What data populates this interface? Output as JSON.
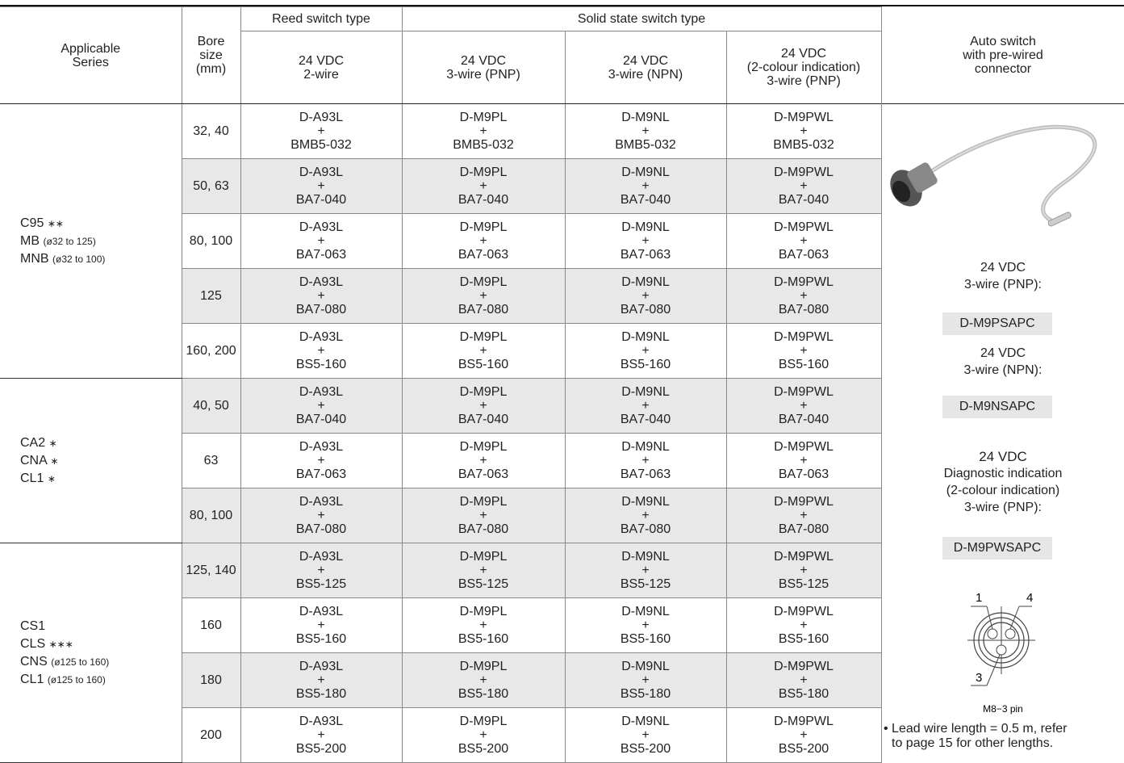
{
  "table": {
    "header": {
      "series": [
        "Applicable",
        "Series"
      ],
      "bore": [
        "Bore",
        "size",
        "(mm)"
      ],
      "reed": "Reed switch type",
      "solid": "Solid state switch type",
      "columns": [
        [
          "24 VDC",
          "2-wire"
        ],
        [
          "24 VDC",
          "3-wire (PNP)"
        ],
        [
          "24 VDC",
          "3-wire (NPN)"
        ],
        [
          "24 VDC",
          "(2-colour indication)",
          "3-wire (PNP)"
        ]
      ],
      "auto": [
        "Auto switch",
        "with pre-wired",
        "connector"
      ]
    },
    "groups": [
      {
        "series": [
          {
            "name": "C95",
            "note": "∗∗"
          },
          {
            "name": "MB",
            "note": "(ø32 to 125)"
          },
          {
            "name": "MNB",
            "note": "(ø32 to 100)"
          }
        ],
        "rows": [
          {
            "bore": "32, 40",
            "cells": [
              [
                "D-A93L",
                "+",
                "BMB5-032"
              ],
              [
                "D-M9PL",
                "+",
                "BMB5-032"
              ],
              [
                "D-M9NL",
                "+",
                "BMB5-032"
              ],
              [
                "D-M9PWL",
                "+",
                "BMB5-032"
              ]
            ]
          },
          {
            "bore": "50, 63",
            "cells": [
              [
                "D-A93L",
                "+",
                "BA7-040"
              ],
              [
                "D-M9PL",
                "+",
                "BA7-040"
              ],
              [
                "D-M9NL",
                "+",
                "BA7-040"
              ],
              [
                "D-M9PWL",
                "+",
                "BA7-040"
              ]
            ]
          },
          {
            "bore": "80, 100",
            "cells": [
              [
                "D-A93L",
                "+",
                "BA7-063"
              ],
              [
                "D-M9PL",
                "+",
                "BA7-063"
              ],
              [
                "D-M9NL",
                "+",
                "BA7-063"
              ],
              [
                "D-M9PWL",
                "+",
                "BA7-063"
              ]
            ]
          },
          {
            "bore": "125",
            "cells": [
              [
                "D-A93L",
                "+",
                "BA7-080"
              ],
              [
                "D-M9PL",
                "+",
                "BA7-080"
              ],
              [
                "D-M9NL",
                "+",
                "BA7-080"
              ],
              [
                "D-M9PWL",
                "+",
                "BA7-080"
              ]
            ]
          },
          {
            "bore": "160, 200",
            "cells": [
              [
                "D-A93L",
                "+",
                "BS5-160"
              ],
              [
                "D-M9PL",
                "+",
                "BS5-160"
              ],
              [
                "D-M9NL",
                "+",
                "BS5-160"
              ],
              [
                "D-M9PWL",
                "+",
                "BS5-160"
              ]
            ]
          }
        ]
      },
      {
        "series": [
          {
            "name": "CA2",
            "note": "∗"
          },
          {
            "name": "CNA",
            "note": "∗"
          },
          {
            "name": "CL1",
            "note": "∗"
          }
        ],
        "rows": [
          {
            "bore": "40, 50",
            "cells": [
              [
                "D-A93L",
                "+",
                "BA7-040"
              ],
              [
                "D-M9PL",
                "+",
                "BA7-040"
              ],
              [
                "D-M9NL",
                "+",
                "BA7-040"
              ],
              [
                "D-M9PWL",
                "+",
                "BA7-040"
              ]
            ]
          },
          {
            "bore": "63",
            "cells": [
              [
                "D-A93L",
                "+",
                "BA7-063"
              ],
              [
                "D-M9PL",
                "+",
                "BA7-063"
              ],
              [
                "D-M9NL",
                "+",
                "BA7-063"
              ],
              [
                "D-M9PWL",
                "+",
                "BA7-063"
              ]
            ]
          },
          {
            "bore": "80, 100",
            "cells": [
              [
                "D-A93L",
                "+",
                "BA7-080"
              ],
              [
                "D-M9PL",
                "+",
                "BA7-080"
              ],
              [
                "D-M9NL",
                "+",
                "BA7-080"
              ],
              [
                "D-M9PWL",
                "+",
                "BA7-080"
              ]
            ]
          }
        ]
      },
      {
        "series": [
          {
            "name": "CS1",
            "note": ""
          },
          {
            "name": "CLS",
            "note": "∗∗∗"
          },
          {
            "name": "CNS",
            "note": "(ø125 to 160)"
          },
          {
            "name": "CL1",
            "note": "(ø125 to 160)"
          }
        ],
        "rows": [
          {
            "bore": "125, 140",
            "cells": [
              [
                "D-A93L",
                "+",
                "BS5-125"
              ],
              [
                "D-M9PL",
                "+",
                "BS5-125"
              ],
              [
                "D-M9NL",
                "+",
                "BS5-125"
              ],
              [
                "D-M9PWL",
                "+",
                "BS5-125"
              ]
            ]
          },
          {
            "bore": "160",
            "cells": [
              [
                "D-A93L",
                "+",
                "BS5-160"
              ],
              [
                "D-M9PL",
                "+",
                "BS5-160"
              ],
              [
                "D-M9NL",
                "+",
                "BS5-160"
              ],
              [
                "D-M9PWL",
                "+",
                "BS5-160"
              ]
            ]
          },
          {
            "bore": "180",
            "cells": [
              [
                "D-A93L",
                "+",
                "BS5-180"
              ],
              [
                "D-M9PL",
                "+",
                "BS5-180"
              ],
              [
                "D-M9NL",
                "+",
                "BS5-180"
              ],
              [
                "D-M9PWL",
                "+",
                "BS5-180"
              ]
            ]
          },
          {
            "bore": "200",
            "cells": [
              [
                "D-A93L",
                "+",
                "BS5-200"
              ],
              [
                "D-M9PL",
                "+",
                "BS5-200"
              ],
              [
                "D-M9NL",
                "+",
                "BS5-200"
              ],
              [
                "D-M9PWL",
                "+",
                "BS5-200"
              ]
            ]
          }
        ]
      }
    ]
  },
  "side": {
    "options": [
      {
        "label": [
          "24 VDC",
          "3-wire (PNP):"
        ],
        "part": "D-M9PSAPC"
      },
      {
        "label": [
          "24 VDC",
          "3-wire (NPN):"
        ],
        "part": "D-M9NSAPC"
      },
      {
        "label": [
          "24 VDC",
          "Diagnostic indication",
          "(2-colour indication)",
          "3-wire (PNP):"
        ],
        "part": "D-M9PWSAPC"
      }
    ],
    "pins": [
      "1",
      "4",
      "3"
    ],
    "pin_caption": "M8−3 pin",
    "note": [
      "• Lead wire length = 0.5 m, refer",
      "to page 15 for other lengths."
    ]
  }
}
